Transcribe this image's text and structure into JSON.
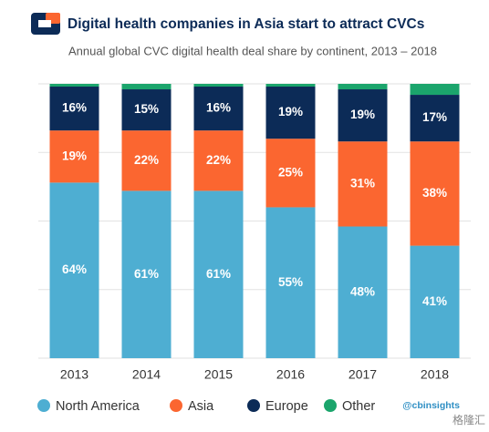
{
  "chart_data": {
    "type": "stacked_bar",
    "title": "Digital health companies in Asia start to attract CVCs",
    "subtitle": "Annual global CVC digital health deal share by continent, 2013 – 2018",
    "categories": [
      "2013",
      "2014",
      "2015",
      "2016",
      "2017",
      "2018"
    ],
    "series": [
      {
        "name": "North America",
        "color": "#4eaed2",
        "values": [
          64,
          61,
          61,
          55,
          48,
          41
        ],
        "value_labels": [
          "64%",
          "61%",
          "61%",
          "55%",
          "48%",
          "41%"
        ]
      },
      {
        "name": "Asia",
        "color": "#fb6630",
        "values": [
          19,
          22,
          22,
          25,
          31,
          38
        ],
        "value_labels": [
          "19%",
          "22%",
          "22%",
          "25%",
          "31%",
          "38%"
        ]
      },
      {
        "name": "Europe",
        "color": "#0c2b57",
        "values": [
          16,
          15,
          16,
          19,
          19,
          17
        ],
        "value_labels": [
          "16%",
          "15%",
          "16%",
          "19%",
          "19%",
          "17%"
        ]
      },
      {
        "name": "Other",
        "color": "#1ba56c",
        "values": [
          1,
          2,
          1,
          1,
          2,
          4
        ]
      }
    ],
    "ylim": [
      0,
      100
    ],
    "yticks": [
      0,
      25,
      50,
      75,
      100
    ],
    "grid": true,
    "source": "@cbinsights",
    "watermark": "格隆汇"
  }
}
